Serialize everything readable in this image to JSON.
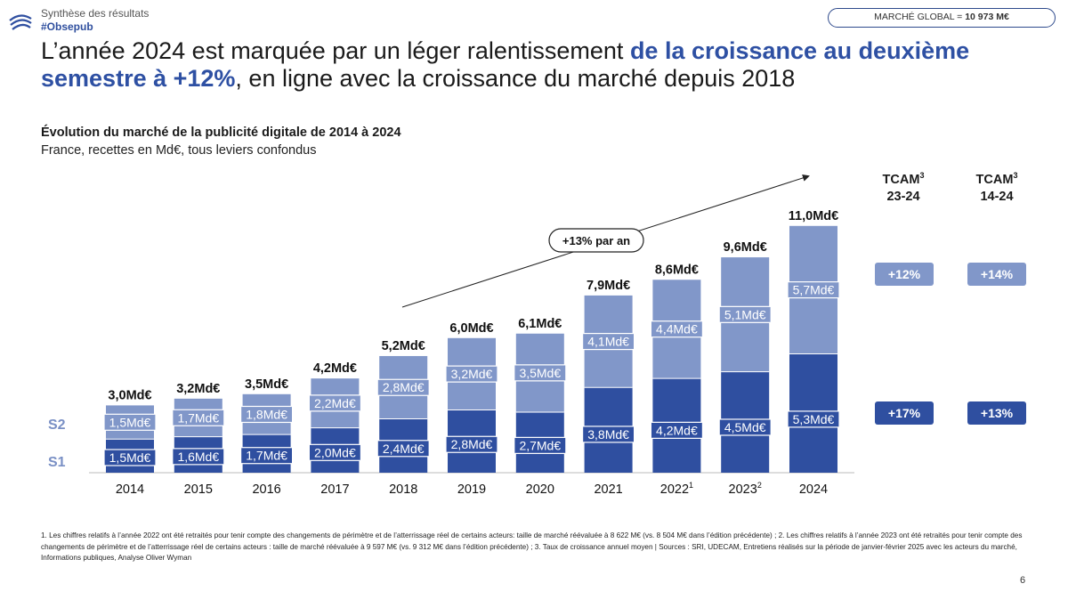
{
  "header": {
    "section": "Synthèse des résultats",
    "hashtag": "#Obsepub",
    "market_label": "MARCHÉ GLOBAL = ",
    "market_value": "10 973 M€"
  },
  "headline": {
    "part1": "L’année 2024 est marquée par un léger ralentissement ",
    "highlight1": "de la croissance au deuxième semestre à +12%",
    "part2": ", en ligne avec la croissance du marché depuis 2018"
  },
  "chart_title": "Évolution du marché de la publicité digitale de 2014 à 2024",
  "chart_subtitle": "France, recettes en Md€, tous leviers confondus",
  "chart_data": {
    "type": "bar",
    "stacked": true,
    "categories": [
      "2014",
      "2015",
      "2016",
      "2017",
      "2018",
      "2019",
      "2020",
      "2021",
      "2022",
      "2023",
      "2024"
    ],
    "category_superscripts": [
      "",
      "",
      "",
      "",
      "",
      "",
      "",
      "",
      "1",
      "2",
      ""
    ],
    "unit": "Md€",
    "series": [
      {
        "name": "S1",
        "values": [
          1.5,
          1.6,
          1.7,
          2.0,
          2.4,
          2.8,
          2.7,
          3.8,
          4.2,
          4.5,
          5.3
        ],
        "labels": [
          "1,5Md€",
          "1,6Md€",
          "1,7Md€",
          "2,0Md€",
          "2,4Md€",
          "2,8Md€",
          "2,7Md€",
          "3,8Md€",
          "4,2Md€",
          "4,5Md€",
          "5,3Md€"
        ]
      },
      {
        "name": "S2",
        "values": [
          1.5,
          1.7,
          1.8,
          2.2,
          2.8,
          3.2,
          3.5,
          4.1,
          4.4,
          5.1,
          5.7
        ],
        "labels": [
          "1,5Md€",
          "1,7Md€",
          "1,8Md€",
          "2,2Md€",
          "2,8Md€",
          "3,2Md€",
          "3,5Md€",
          "4,1Md€",
          "4,4Md€",
          "5,1Md€",
          "5,7Md€"
        ]
      }
    ],
    "totals": [
      3.0,
      3.2,
      3.5,
      4.2,
      5.2,
      6.0,
      6.1,
      7.9,
      8.6,
      9.6,
      11.0
    ],
    "total_labels": [
      "3,0Md€",
      "3,2Md€",
      "3,5Md€",
      "4,2Md€",
      "5,2Md€",
      "6,0Md€",
      "6,1Md€",
      "7,9Md€",
      "8,6Md€",
      "9,6Md€",
      "11,0Md€"
    ],
    "trend_annotation": "+13% par an",
    "colors": {
      "S1": "#2f4fa0",
      "S2": "#8197c9"
    }
  },
  "tcam": {
    "col1_title": "TCAM",
    "col1_sup": "3",
    "col1_period": "23-24",
    "col2_title": "TCAM",
    "col2_sup": "3",
    "col2_period": "14-24",
    "s2_col1": "+12%",
    "s2_col2": "+14%",
    "s1_col1": "+17%",
    "s1_col2": "+13%"
  },
  "footnote": "1. Les chiffres relatifs à l’année 2022 ont été retraités pour tenir compte des changements de périmètre et de l’atterrissage réel de certains acteurs: taille de marché réévaluée à 8 622 M€ (vs. 8 504 M€ dans l’édition précédente) ; 2. Les chiffres relatifs à l’année 2023 ont été retraités pour tenir compte des changements de périmètre et de l’atterrissage réel de certains acteurs : taille de marché réévaluée à 9 597 M€ (vs. 9 312 M€ dans l’édition précédente) ; 3. Taux de croissance annuel moyen | Sources : SRI, UDECAM, Entretiens réalisés sur la période de janvier-février 2025 avec les acteurs du marché, Informations publiques, Analyse Oliver Wyman",
  "page_number": "6"
}
